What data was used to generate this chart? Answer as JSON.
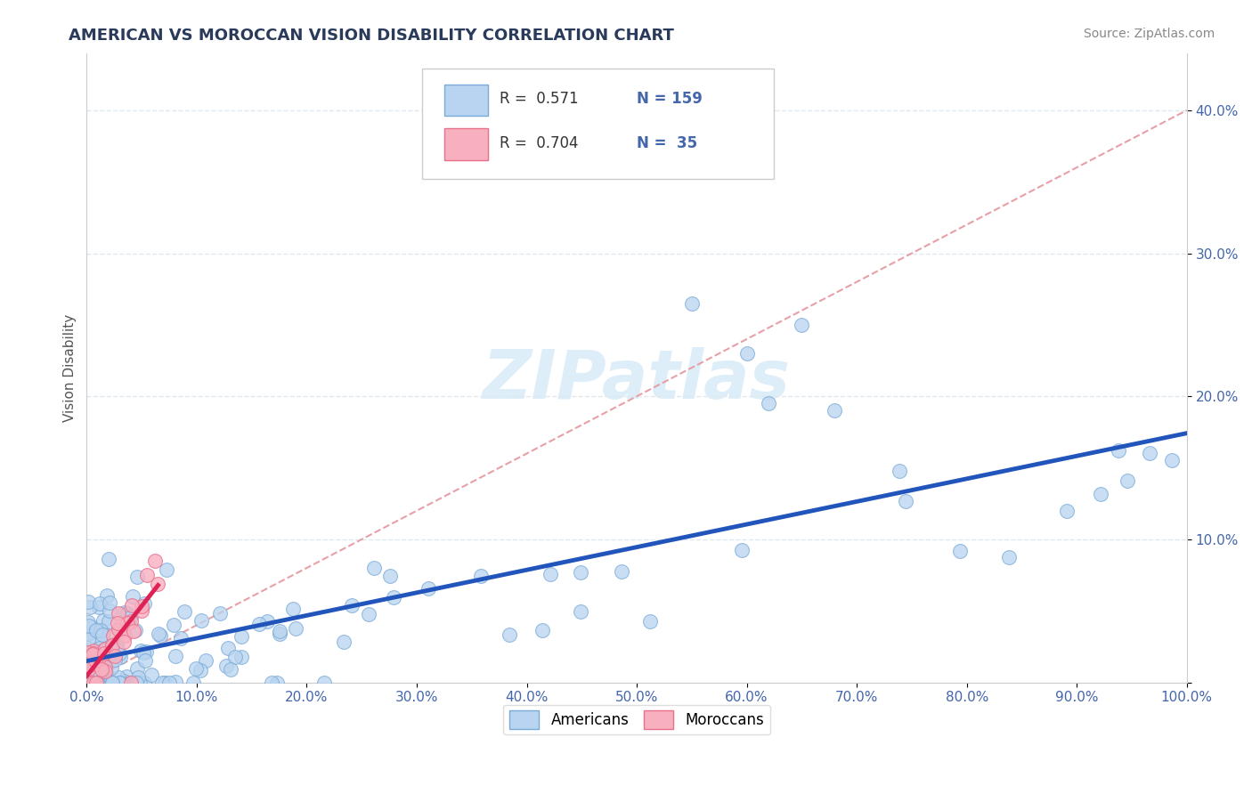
{
  "title": "AMERICAN VS MOROCCAN VISION DISABILITY CORRELATION CHART",
  "source": "Source: ZipAtlas.com",
  "ylabel": "Vision Disability",
  "xlim": [
    0.0,
    1.0
  ],
  "ylim": [
    0.0,
    0.44
  ],
  "xticks": [
    0.0,
    0.1,
    0.2,
    0.3,
    0.4,
    0.5,
    0.6,
    0.7,
    0.8,
    0.9,
    1.0
  ],
  "xticklabels": [
    "0.0%",
    "10.0%",
    "20.0%",
    "30.0%",
    "40.0%",
    "50.0%",
    "60.0%",
    "70.0%",
    "80.0%",
    "90.0%",
    "100.0%"
  ],
  "yticks": [
    0.0,
    0.1,
    0.2,
    0.3,
    0.4
  ],
  "yticklabels": [
    "",
    "10.0%",
    "20.0%",
    "30.0%",
    "40.0%"
  ],
  "american_color": "#b8d4f0",
  "moroccan_color": "#f8b0c0",
  "american_edge": "#7aaad8",
  "moroccan_edge": "#e8708a",
  "regression_blue": "#2255bb",
  "regression_pink": "#dd2255",
  "diagonal_color": "#e8a0a8",
  "watermark_color": "#ddeef8",
  "legend_R_american": "0.571",
  "legend_N_american": "159",
  "legend_R_moroccan": "0.704",
  "legend_N_moroccan": "35",
  "title_color": "#2a3a5a",
  "source_color": "#888888",
  "background_color": "#ffffff",
  "grid_color": "#e0e8f0",
  "tick_color": "#4466aa"
}
